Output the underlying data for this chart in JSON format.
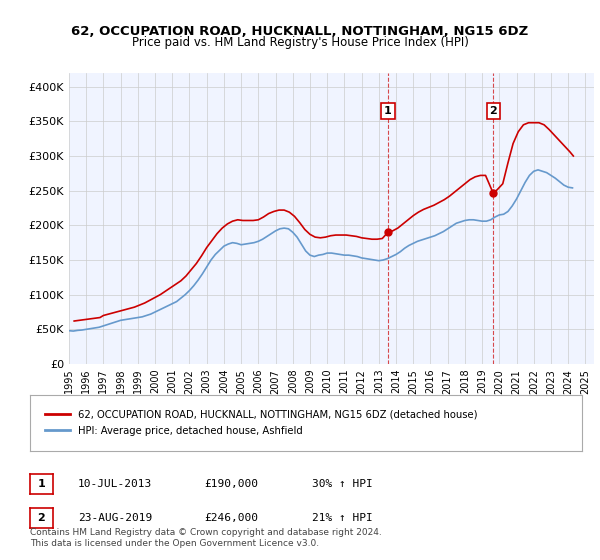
{
  "title": "62, OCCUPATION ROAD, HUCKNALL, NOTTINGHAM, NG15 6DZ",
  "subtitle": "Price paid vs. HM Land Registry's House Price Index (HPI)",
  "ylabel": "",
  "ylim": [
    0,
    420000
  ],
  "yticks": [
    0,
    50000,
    100000,
    150000,
    200000,
    250000,
    300000,
    350000,
    400000
  ],
  "ytick_labels": [
    "£0",
    "£50K",
    "£100K",
    "£150K",
    "£200K",
    "£250K",
    "£300K",
    "£350K",
    "£400K"
  ],
  "xlim_start": 1995.0,
  "xlim_end": 2025.5,
  "sale1_x": 2013.53,
  "sale1_y": 190000,
  "sale1_label": "1",
  "sale1_date": "10-JUL-2013",
  "sale1_price": "£190,000",
  "sale1_hpi": "30% ↑ HPI",
  "sale2_x": 2019.65,
  "sale2_y": 246000,
  "sale2_label": "2",
  "sale2_date": "23-AUG-2019",
  "sale2_price": "£246,000",
  "sale2_hpi": "21% ↑ HPI",
  "red_color": "#cc0000",
  "blue_color": "#6699cc",
  "bg_color": "#f0f4ff",
  "legend_label_red": "62, OCCUPATION ROAD, HUCKNALL, NOTTINGHAM, NG15 6DZ (detached house)",
  "legend_label_blue": "HPI: Average price, detached house, Ashfield",
  "footer": "Contains HM Land Registry data © Crown copyright and database right 2024.\nThis data is licensed under the Open Government Licence v3.0.",
  "hpi_years": [
    1995,
    1995.25,
    1995.5,
    1995.75,
    1996,
    1996.25,
    1996.5,
    1996.75,
    1997,
    1997.25,
    1997.5,
    1997.75,
    1998,
    1998.25,
    1998.5,
    1998.75,
    1999,
    1999.25,
    1999.5,
    1999.75,
    2000,
    2000.25,
    2000.5,
    2000.75,
    2001,
    2001.25,
    2001.5,
    2001.75,
    2002,
    2002.25,
    2002.5,
    2002.75,
    2003,
    2003.25,
    2003.5,
    2003.75,
    2004,
    2004.25,
    2004.5,
    2004.75,
    2005,
    2005.25,
    2005.5,
    2005.75,
    2006,
    2006.25,
    2006.5,
    2006.75,
    2007,
    2007.25,
    2007.5,
    2007.75,
    2008,
    2008.25,
    2008.5,
    2008.75,
    2009,
    2009.25,
    2009.5,
    2009.75,
    2010,
    2010.25,
    2010.5,
    2010.75,
    2011,
    2011.25,
    2011.5,
    2011.75,
    2012,
    2012.25,
    2012.5,
    2012.75,
    2013,
    2013.25,
    2013.5,
    2013.75,
    2014,
    2014.25,
    2014.5,
    2014.75,
    2015,
    2015.25,
    2015.5,
    2015.75,
    2016,
    2016.25,
    2016.5,
    2016.75,
    2017,
    2017.25,
    2017.5,
    2017.75,
    2018,
    2018.25,
    2018.5,
    2018.75,
    2019,
    2019.25,
    2019.5,
    2019.75,
    2020,
    2020.25,
    2020.5,
    2020.75,
    2021,
    2021.25,
    2021.5,
    2021.75,
    2022,
    2022.25,
    2022.5,
    2022.75,
    2023,
    2023.25,
    2023.5,
    2023.75,
    2024,
    2024.25
  ],
  "hpi_values": [
    48000,
    47500,
    48500,
    49000,
    50000,
    51000,
    52000,
    53000,
    55000,
    57000,
    59000,
    61000,
    63000,
    64000,
    65000,
    66000,
    67000,
    68000,
    70000,
    72000,
    75000,
    78000,
    81000,
    84000,
    87000,
    90000,
    95000,
    100000,
    106000,
    113000,
    121000,
    130000,
    140000,
    150000,
    158000,
    164000,
    170000,
    173000,
    175000,
    174000,
    172000,
    173000,
    174000,
    175000,
    177000,
    180000,
    184000,
    188000,
    192000,
    195000,
    196000,
    195000,
    190000,
    183000,
    173000,
    163000,
    157000,
    155000,
    157000,
    158000,
    160000,
    160000,
    159000,
    158000,
    157000,
    157000,
    156000,
    155000,
    153000,
    152000,
    151000,
    150000,
    149000,
    150000,
    152000,
    155000,
    158000,
    162000,
    167000,
    171000,
    174000,
    177000,
    179000,
    181000,
    183000,
    185000,
    188000,
    191000,
    195000,
    199000,
    203000,
    205000,
    207000,
    208000,
    208000,
    207000,
    206000,
    206000,
    208000,
    212000,
    215000,
    216000,
    220000,
    228000,
    238000,
    250000,
    262000,
    272000,
    278000,
    280000,
    278000,
    276000,
    272000,
    268000,
    263000,
    258000,
    255000,
    254000
  ],
  "price_years": [
    1995.3,
    1995.6,
    1995.9,
    1996.2,
    1996.5,
    1996.8,
    1997.0,
    1997.3,
    1997.6,
    1997.9,
    1998.2,
    1998.5,
    1998.8,
    1999.1,
    1999.4,
    1999.7,
    2000.0,
    2000.3,
    2000.6,
    2000.9,
    2001.2,
    2001.5,
    2001.8,
    2002.1,
    2002.4,
    2002.7,
    2003.0,
    2003.3,
    2003.6,
    2003.9,
    2004.2,
    2004.5,
    2004.8,
    2005.1,
    2005.4,
    2005.7,
    2006.0,
    2006.3,
    2006.6,
    2006.9,
    2007.2,
    2007.5,
    2007.8,
    2008.1,
    2008.4,
    2008.7,
    2009.0,
    2009.3,
    2009.6,
    2009.9,
    2010.2,
    2010.5,
    2010.8,
    2011.1,
    2011.4,
    2011.7,
    2012.0,
    2012.3,
    2012.6,
    2012.9,
    2013.2,
    2013.53,
    2013.8,
    2014.1,
    2014.4,
    2014.7,
    2015.0,
    2015.3,
    2015.6,
    2015.9,
    2016.2,
    2016.5,
    2016.8,
    2017.1,
    2017.4,
    2017.7,
    2018.0,
    2018.3,
    2018.6,
    2018.9,
    2019.2,
    2019.65,
    2019.9,
    2020.2,
    2020.5,
    2020.8,
    2021.1,
    2021.4,
    2021.7,
    2022.0,
    2022.3,
    2022.6,
    2022.9,
    2023.2,
    2023.5,
    2023.8,
    2024.1,
    2024.3
  ],
  "price_values": [
    62000,
    63000,
    64000,
    65000,
    66000,
    67000,
    70000,
    72000,
    74000,
    76000,
    78000,
    80000,
    82000,
    85000,
    88000,
    92000,
    96000,
    100000,
    105000,
    110000,
    115000,
    120000,
    127000,
    136000,
    145000,
    156000,
    168000,
    178000,
    188000,
    196000,
    202000,
    206000,
    208000,
    207000,
    207000,
    207000,
    208000,
    212000,
    217000,
    220000,
    222000,
    222000,
    219000,
    213000,
    204000,
    194000,
    187000,
    183000,
    182000,
    183000,
    185000,
    186000,
    186000,
    186000,
    185000,
    184000,
    182000,
    181000,
    180000,
    180000,
    181000,
    190000,
    192000,
    196000,
    202000,
    208000,
    214000,
    219000,
    223000,
    226000,
    229000,
    233000,
    237000,
    242000,
    248000,
    254000,
    260000,
    266000,
    270000,
    272000,
    272000,
    246000,
    252000,
    260000,
    290000,
    318000,
    335000,
    345000,
    348000,
    348000,
    348000,
    345000,
    338000,
    330000,
    322000,
    314000,
    306000,
    300000
  ]
}
